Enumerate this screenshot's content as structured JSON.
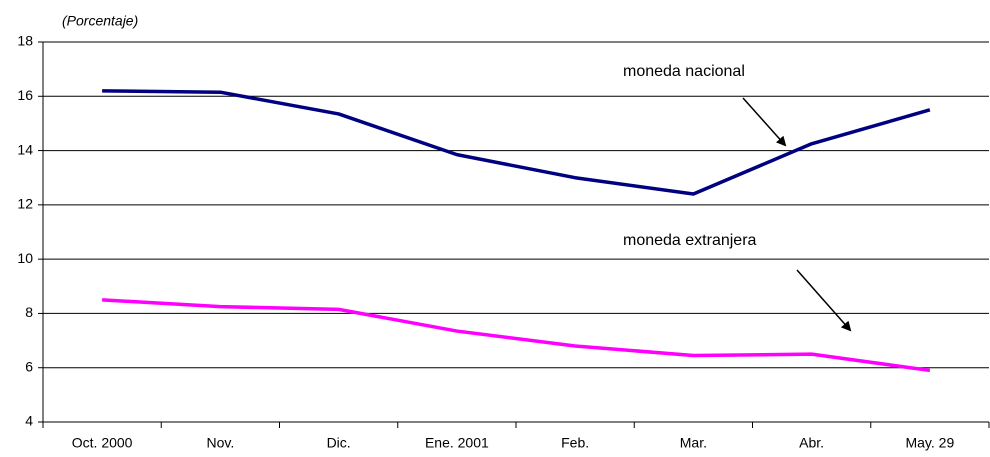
{
  "chart_data": {
    "type": "line",
    "y_axis_label": "(Porcentaje)",
    "categories": [
      "Oct. 2000",
      "Nov.",
      "Dic.",
      "Ene. 2001",
      "Feb.",
      "Mar.",
      "Abr.",
      "May. 29"
    ],
    "series": [
      {
        "name": "moneda nacional",
        "color": "#000080",
        "values": [
          16.2,
          16.15,
          15.35,
          13.85,
          13.0,
          12.4,
          14.25,
          15.5
        ]
      },
      {
        "name": "moneda extranjera",
        "color": "#ff00ff",
        "values": [
          8.5,
          8.25,
          8.15,
          7.35,
          6.8,
          6.45,
          6.5,
          5.9
        ]
      }
    ],
    "ylim": [
      4,
      18
    ],
    "yticks": [
      4,
      6,
      8,
      10,
      12,
      14,
      16,
      18
    ],
    "grid": true
  }
}
